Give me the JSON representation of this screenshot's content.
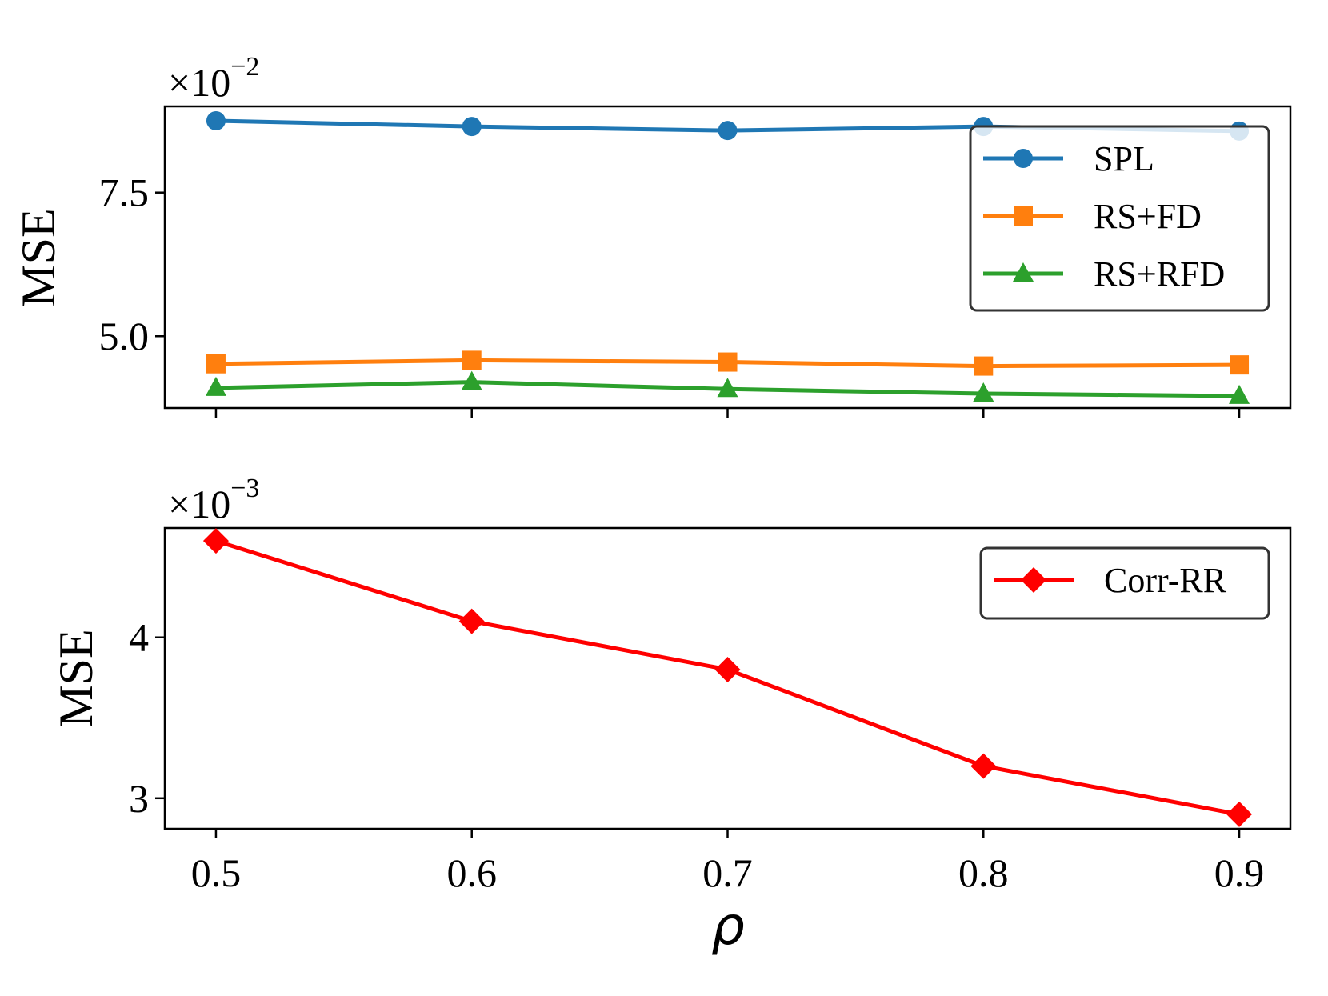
{
  "colors": {
    "SPL": "#1f77b4",
    "RS+FD": "#ff7f0e",
    "RS+RFD": "#2ca02c",
    "Corr-RR": "#ff0000"
  },
  "x_label": "ρ",
  "chart_data": [
    {
      "type": "line",
      "x": [
        0.5,
        0.6,
        0.7,
        0.8,
        0.9
      ],
      "xlim": [
        0.48,
        0.92
      ],
      "ylabel": "MSE",
      "y_multiplier": "×10⁻²",
      "y_multiplier_base": "×10",
      "y_multiplier_exp": "−2",
      "ylim": [
        3.75,
        9.0
      ],
      "yticks": [
        5.0,
        7.5
      ],
      "ytick_labels": [
        "5.0",
        "7.5"
      ],
      "legend_position": "upper-right",
      "series": [
        {
          "name": "SPL",
          "marker": "circle",
          "values": [
            8.75,
            8.65,
            8.58,
            8.65,
            8.57
          ]
        },
        {
          "name": "RS+FD",
          "marker": "square",
          "values": [
            4.52,
            4.58,
            4.55,
            4.48,
            4.5
          ]
        },
        {
          "name": "RS+RFD",
          "marker": "triangle",
          "values": [
            4.1,
            4.2,
            4.08,
            4.0,
            3.96
          ]
        }
      ]
    },
    {
      "type": "line",
      "x": [
        0.5,
        0.6,
        0.7,
        0.8,
        0.9
      ],
      "xlim": [
        0.48,
        0.92
      ],
      "xticks": [
        0.5,
        0.6,
        0.7,
        0.8,
        0.9
      ],
      "xtick_labels": [
        "0.5",
        "0.6",
        "0.7",
        "0.8",
        "0.9"
      ],
      "ylabel": "MSE",
      "xlabel": "ρ",
      "y_multiplier": "×10⁻³",
      "y_multiplier_base": "×10",
      "y_multiplier_exp": "−3",
      "ylim": [
        2.81,
        4.68
      ],
      "yticks": [
        3,
        4
      ],
      "ytick_labels": [
        "3",
        "4"
      ],
      "legend_position": "upper-right",
      "series": [
        {
          "name": "Corr-RR",
          "marker": "diamond",
          "values": [
            4.6,
            4.1,
            3.8,
            3.2,
            2.9
          ]
        }
      ]
    }
  ]
}
